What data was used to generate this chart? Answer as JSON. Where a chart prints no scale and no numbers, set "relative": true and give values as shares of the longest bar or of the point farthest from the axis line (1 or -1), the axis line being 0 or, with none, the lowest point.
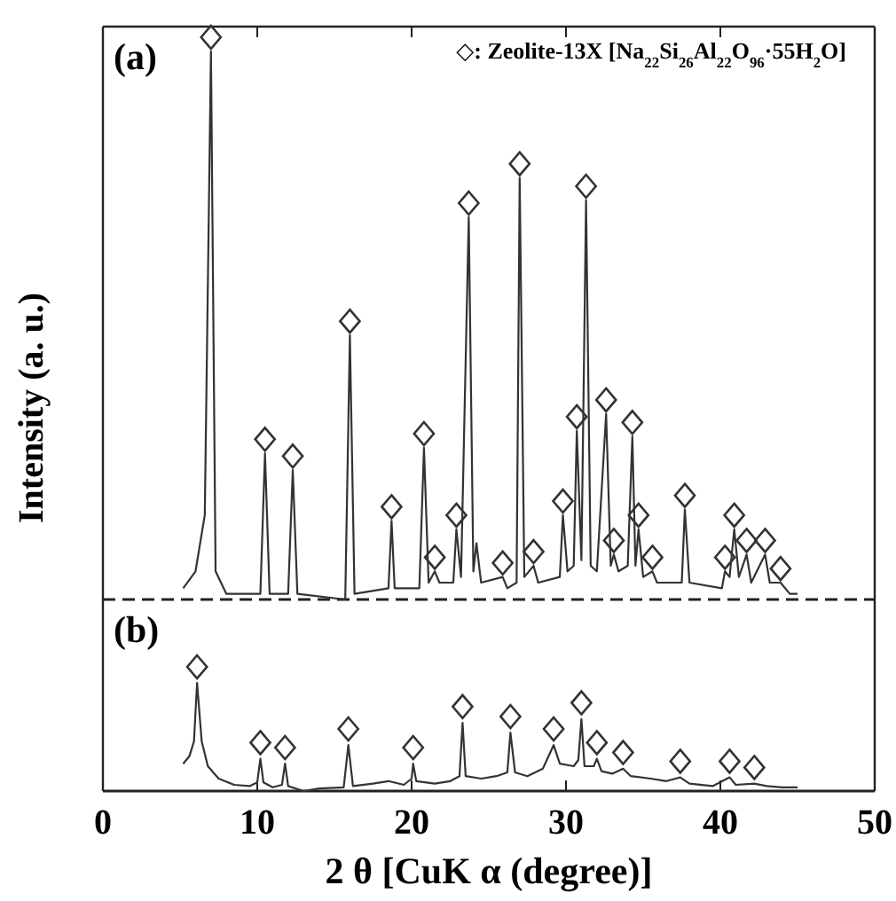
{
  "chart_data": [
    {
      "type": "line",
      "title": "(a)",
      "ylabel": "Intensity (a. u.)",
      "relative": true,
      "xlim": [
        0,
        50
      ],
      "xticks": [
        0,
        10,
        20,
        30,
        40,
        50
      ],
      "tick_labels": false,
      "annotations": [
        "◇: Zeolite-13X [Na$_{22}$Si$_{26}$Al$_{22}$O$_{96}$·55H$_{2}$O]"
      ],
      "series": [
        {
          "color": "#333333",
          "x": [
            5.2,
            6.0,
            6.6,
            7.0,
            7.3,
            8,
            10.2,
            10.5,
            10.8,
            12.0,
            12.3,
            12.6,
            15.7,
            16.0,
            16.3,
            18.5,
            18.7,
            18.9,
            20.5,
            20.8,
            21.1,
            21.5,
            21.8,
            22.7,
            22.9,
            23.2,
            23.7,
            24.0,
            24.2,
            24.5,
            25.9,
            26.2,
            26.8,
            27.0,
            27.3,
            27.9,
            28.2,
            29.6,
            29.8,
            30.1,
            30.5,
            30.7,
            31.0,
            31.3,
            31.6,
            32.0,
            32.6,
            32.9,
            33.1,
            33.4,
            34.0,
            34.3,
            34.5,
            34.7,
            35.0,
            35.6,
            35.9,
            37.5,
            37.7,
            38.0,
            40.1,
            40.3,
            40.6,
            40.9,
            41.2,
            41.7,
            42.0,
            42.9,
            43.2,
            43.9,
            44.5,
            45.0
          ],
          "values": [
            0.02,
            0.05,
            0.15,
            0.975,
            0.05,
            0.01,
            0.01,
            0.26,
            0.01,
            0.01,
            0.23,
            0.01,
            0.0,
            0.47,
            0.01,
            0.02,
            0.14,
            0.02,
            0.02,
            0.27,
            0.03,
            0.05,
            0.03,
            0.03,
            0.125,
            0.04,
            0.68,
            0.05,
            0.1,
            0.03,
            0.04,
            0.02,
            0.03,
            0.75,
            0.04,
            0.06,
            0.03,
            0.04,
            0.15,
            0.05,
            0.06,
            0.3,
            0.07,
            0.71,
            0.06,
            0.05,
            0.33,
            0.06,
            0.08,
            0.05,
            0.06,
            0.29,
            0.06,
            0.125,
            0.04,
            0.05,
            0.03,
            0.03,
            0.16,
            0.03,
            0.02,
            0.05,
            0.04,
            0.125,
            0.04,
            0.08,
            0.03,
            0.08,
            0.03,
            0.03,
            0.01,
            0.01
          ]
        },
        {
          "type": "scatter",
          "color": "#333333",
          "marker": "diamond",
          "x": [
            7.0,
            10.5,
            12.3,
            16.0,
            18.7,
            20.8,
            21.5,
            22.9,
            23.7,
            25.9,
            27.0,
            27.9,
            29.8,
            30.7,
            31.3,
            32.6,
            33.1,
            34.3,
            34.7,
            35.6,
            37.7,
            40.3,
            40.9,
            41.7,
            42.9,
            43.9
          ],
          "values": [
            1.0,
            0.285,
            0.255,
            0.495,
            0.165,
            0.295,
            0.075,
            0.15,
            0.705,
            0.065,
            0.775,
            0.085,
            0.175,
            0.325,
            0.735,
            0.355,
            0.105,
            0.315,
            0.15,
            0.075,
            0.185,
            0.075,
            0.15,
            0.105,
            0.105,
            0.055
          ]
        }
      ]
    },
    {
      "type": "line",
      "title": "(b)",
      "xlabel": "2 θ [CuK α (degree)]",
      "relative": true,
      "xlim": [
        0,
        50
      ],
      "xticks": [
        0,
        10,
        20,
        30,
        40,
        50
      ],
      "tick_labels": "x",
      "series": [
        {
          "color": "#333333",
          "x": [
            5.2,
            5.6,
            5.9,
            6.1,
            6.4,
            6.8,
            7.5,
            8.5,
            9.5,
            10.0,
            10.2,
            10.4,
            11.0,
            11.6,
            11.8,
            12.0,
            13,
            14,
            15.6,
            15.9,
            16.2,
            17.5,
            18.5,
            19.5,
            20.0,
            20.1,
            20.3,
            21.5,
            22.5,
            23.1,
            23.3,
            23.5,
            24.5,
            25.5,
            26.2,
            26.4,
            26.7,
            27.5,
            28.5,
            29.2,
            29.6,
            30.5,
            30.8,
            31.0,
            31.2,
            31.8,
            32.0,
            32.3,
            33,
            33.7,
            34.2,
            35.5,
            36.5,
            37.4,
            38,
            39.5,
            40.6,
            41,
            42.2,
            43,
            44,
            45
          ],
          "values": [
            0.22,
            0.28,
            0.4,
            0.87,
            0.4,
            0.2,
            0.1,
            0.05,
            0.04,
            0.07,
            0.26,
            0.07,
            0.03,
            0.05,
            0.22,
            0.04,
            0.0,
            0.02,
            0.03,
            0.37,
            0.04,
            0.06,
            0.08,
            0.05,
            0.1,
            0.22,
            0.08,
            0.06,
            0.08,
            0.12,
            0.55,
            0.12,
            0.1,
            0.12,
            0.15,
            0.47,
            0.15,
            0.12,
            0.18,
            0.37,
            0.22,
            0.2,
            0.25,
            0.58,
            0.2,
            0.2,
            0.26,
            0.16,
            0.14,
            0.18,
            0.12,
            0.1,
            0.08,
            0.11,
            0.06,
            0.04,
            0.11,
            0.05,
            0.06,
            0.04,
            0.03,
            0.03
          ]
        },
        {
          "type": "scatter",
          "color": "#333333",
          "marker": "diamond",
          "x": [
            6.1,
            10.2,
            11.8,
            15.9,
            20.1,
            23.3,
            26.4,
            29.2,
            31.0,
            32.0,
            33.7,
            37.4,
            40.6,
            42.2
          ],
          "values": [
            1.0,
            0.39,
            0.35,
            0.5,
            0.35,
            0.68,
            0.6,
            0.5,
            0.71,
            0.39,
            0.31,
            0.24,
            0.24,
            0.19
          ]
        }
      ]
    }
  ]
}
